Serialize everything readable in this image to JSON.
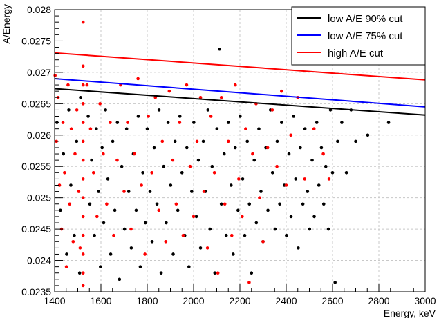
{
  "chart_data": {
    "type": "scatter",
    "title": "",
    "xlabel": "Energy, keV",
    "ylabel": "A/Energy",
    "xlim": [
      1400,
      3000
    ],
    "ylim": [
      0.0235,
      0.028
    ],
    "x_ticks": [
      1400,
      1600,
      1800,
      2000,
      2200,
      2400,
      2600,
      2800,
      3000
    ],
    "x_tick_labels": [
      "1400",
      "1600",
      "1800",
      "2000",
      "2200",
      "2400",
      "2600",
      "2800",
      "3000"
    ],
    "y_ticks": [
      0.0235,
      0.024,
      0.0245,
      0.025,
      0.0255,
      0.026,
      0.0265,
      0.027,
      0.0275,
      0.028
    ],
    "y_tick_labels": [
      "0.0235",
      "0.024",
      "0.0245",
      "0.025",
      "0.0255",
      "0.026",
      "0.0265",
      "0.027",
      "0.0275",
      "0.028"
    ],
    "grid": true,
    "legend_position": "top-right",
    "lines": [
      {
        "name": "low A/E 90% cut",
        "color": "#000000",
        "x": [
          1400,
          3000
        ],
        "y": [
          0.02674,
          0.02632
        ]
      },
      {
        "name": "low A/E 75% cut",
        "color": "#0000ff",
        "x": [
          1400,
          3000
        ],
        "y": [
          0.0269,
          0.02645
        ]
      },
      {
        "name": "high A/E cut",
        "color": "#ff0000",
        "x": [
          1400,
          3000
        ],
        "y": [
          0.02731,
          0.02688
        ]
      }
    ],
    "scatter_series": [
      {
        "color": "#000000",
        "points": [
          [
            1410,
            0.0262
          ],
          [
            1425,
            0.0248
          ],
          [
            1438,
            0.0257
          ],
          [
            1452,
            0.0241
          ],
          [
            1461,
            0.0264
          ],
          [
            1470,
            0.0252
          ],
          [
            1485,
            0.0244
          ],
          [
            1495,
            0.0259
          ],
          [
            1508,
            0.0238
          ],
          [
            1512,
            0.0266
          ],
          [
            1545,
            0.0263
          ],
          [
            1552,
            0.0249
          ],
          [
            1560,
            0.0256
          ],
          [
            1572,
            0.0244
          ],
          [
            1580,
            0.0261
          ],
          [
            1590,
            0.0251
          ],
          [
            1598,
            0.0239
          ],
          [
            1605,
            0.0258
          ],
          [
            1612,
            0.0246
          ],
          [
            1620,
            0.0264
          ],
          [
            1630,
            0.0253
          ],
          [
            1642,
            0.0241
          ],
          [
            1651,
            0.0259
          ],
          [
            1660,
            0.0248
          ],
          [
            1671,
            0.0262
          ],
          [
            1680,
            0.0237
          ],
          [
            1690,
            0.0255
          ],
          [
            1702,
            0.0245
          ],
          [
            1711,
            0.0261
          ],
          [
            1720,
            0.0251
          ],
          [
            1731,
            0.0242
          ],
          [
            1740,
            0.0257
          ],
          [
            1752,
            0.0248
          ],
          [
            1761,
            0.0263
          ],
          [
            1770,
            0.0239
          ],
          [
            1781,
            0.0254
          ],
          [
            1792,
            0.0246
          ],
          [
            1800,
            0.0261
          ],
          [
            1812,
            0.0251
          ],
          [
            1821,
            0.0243
          ],
          [
            1830,
            0.0258
          ],
          [
            1842,
            0.0249
          ],
          [
            1851,
            0.0264
          ],
          [
            1860,
            0.0238
          ],
          [
            1871,
            0.0255
          ],
          [
            1882,
            0.0246
          ],
          [
            1890,
            0.0262
          ],
          [
            1901,
            0.0252
          ],
          [
            1912,
            0.0241
          ],
          [
            1920,
            0.0259
          ],
          [
            1932,
            0.0248
          ],
          [
            1941,
            0.0263
          ],
          [
            1950,
            0.0254
          ],
          [
            1962,
            0.0244
          ],
          [
            1971,
            0.0258
          ],
          [
            1980,
            0.0239
          ],
          [
            1992,
            0.0251
          ],
          [
            2001,
            0.0262
          ],
          [
            2012,
            0.0247
          ],
          [
            2021,
            0.0256
          ],
          [
            2030,
            0.0242
          ],
          [
            2042,
            0.0259
          ],
          [
            2051,
            0.0251
          ],
          [
            2062,
            0.0264
          ],
          [
            2071,
            0.0245
          ],
          [
            2080,
            0.0255
          ],
          [
            2092,
            0.0238
          ],
          [
            2101,
            0.0261
          ],
          [
            2112,
            0.02737
          ],
          [
            2120,
            0.0249
          ],
          [
            2132,
            0.0257
          ],
          [
            2141,
            0.0244
          ],
          [
            2150,
            0.0262
          ],
          [
            2162,
            0.0252
          ],
          [
            2171,
            0.0241
          ],
          [
            2180,
            0.0258
          ],
          [
            2192,
            0.0248
          ],
          [
            2201,
            0.0263
          ],
          [
            2212,
            0.0253
          ],
          [
            2221,
            0.0244
          ],
          [
            2232,
            0.0259
          ],
          [
            2241,
            0.0249
          ],
          [
            2250,
            0.0238
          ],
          [
            2262,
            0.0256
          ],
          [
            2271,
            0.0246
          ],
          [
            2282,
            0.0261
          ],
          [
            2291,
            0.0251
          ],
          [
            2300,
            0.0243
          ],
          [
            2312,
            0.0258
          ],
          [
            2321,
            0.0248
          ],
          [
            2332,
            0.0264
          ],
          [
            2341,
            0.0254
          ],
          [
            2352,
            0.0245
          ],
          [
            2361,
            0.0259
          ],
          [
            2372,
            0.0249
          ],
          [
            2380,
            0.0262
          ],
          [
            2392,
            0.0252
          ],
          [
            2401,
            0.0244
          ],
          [
            2412,
            0.0257
          ],
          [
            2421,
            0.0247
          ],
          [
            2432,
            0.0263
          ],
          [
            2441,
            0.0253
          ],
          [
            2452,
            0.0242
          ],
          [
            2461,
            0.0258
          ],
          [
            2472,
            0.0249
          ],
          [
            2481,
            0.0261
          ],
          [
            2492,
            0.0251
          ],
          [
            2501,
            0.0245
          ],
          [
            2512,
            0.0256
          ],
          [
            2521,
            0.0247
          ],
          [
            2532,
            0.0262
          ],
          [
            2541,
            0.0252
          ],
          [
            2552,
            0.0258
          ],
          [
            2562,
            0.0249
          ],
          [
            2571,
            0.0255
          ],
          [
            2582,
            0.0245
          ],
          [
            2591,
            0.0264
          ],
          [
            2600,
            0.0254
          ],
          [
            2611,
            0.02365
          ],
          [
            2622,
            0.0259
          ],
          [
            2640,
            0.0262
          ],
          [
            2660,
            0.0254
          ],
          [
            2680,
            0.0264
          ],
          [
            2700,
            0.0259
          ],
          [
            2752,
            0.026
          ],
          [
            2842,
            0.0262
          ]
        ]
      },
      {
        "color": "#ff0000",
        "points": [
          [
            1402,
            0.02695
          ],
          [
            1408,
            0.0259
          ],
          [
            1415,
            0.0266
          ],
          [
            1421,
            0.0252
          ],
          [
            1430,
            0.0245
          ],
          [
            1436,
            0.0262
          ],
          [
            1443,
            0.0254
          ],
          [
            1451,
            0.0239
          ],
          [
            1458,
            0.0268
          ],
          [
            1465,
            0.0249
          ],
          [
            1472,
            0.0261
          ],
          [
            1480,
            0.0243
          ],
          [
            1488,
            0.0257
          ],
          [
            1496,
            0.0264
          ],
          [
            1504,
            0.0251
          ],
          [
            1510,
            0.0242
          ],
          [
            1523,
            0.0278
          ],
          [
            1523,
            0.0271
          ],
          [
            1523,
            0.0268
          ],
          [
            1523,
            0.0265
          ],
          [
            1523,
            0.0262
          ],
          [
            1523,
            0.0259
          ],
          [
            1523,
            0.0256
          ],
          [
            1523,
            0.0253
          ],
          [
            1523,
            0.025
          ],
          [
            1523,
            0.0247
          ],
          [
            1523,
            0.0244
          ],
          [
            1523,
            0.0241
          ],
          [
            1523,
            0.0238
          ],
          [
            1523,
            0.0236
          ],
          [
            1540,
            0.0268
          ],
          [
            1555,
            0.0261
          ],
          [
            1568,
            0.0254
          ],
          [
            1583,
            0.0247
          ],
          [
            1596,
            0.0265
          ],
          [
            1610,
            0.0257
          ],
          [
            1625,
            0.0249
          ],
          [
            1640,
            0.0262
          ],
          [
            1655,
            0.0244
          ],
          [
            1670,
            0.0256
          ],
          [
            1685,
            0.0268
          ],
          [
            1700,
            0.0251
          ],
          [
            1715,
            0.0262
          ],
          [
            1730,
            0.0245
          ],
          [
            1745,
            0.0257
          ],
          [
            1760,
            0.0269
          ],
          [
            1775,
            0.0252
          ],
          [
            1790,
            0.0241
          ],
          [
            1805,
            0.0263
          ],
          [
            1820,
            0.0254
          ],
          [
            1835,
            0.0266
          ],
          [
            1850,
            0.0248
          ],
          [
            1865,
            0.0259
          ],
          [
            1880,
            0.0243
          ],
          [
            1895,
            0.0267
          ],
          [
            1910,
            0.0256
          ],
          [
            1925,
            0.0249
          ],
          [
            1940,
            0.0262
          ],
          [
            1955,
            0.0244
          ],
          [
            1970,
            0.0268
          ],
          [
            1985,
            0.0255
          ],
          [
            2000,
            0.0247
          ],
          [
            2015,
            0.0259
          ],
          [
            2030,
            0.0266
          ],
          [
            2045,
            0.0251
          ],
          [
            2060,
            0.0242
          ],
          [
            2075,
            0.0263
          ],
          [
            2090,
            0.0254
          ],
          [
            2105,
            0.0238
          ],
          [
            2120,
            0.0266
          ],
          [
            2135,
            0.0249
          ],
          [
            2150,
            0.0259
          ],
          [
            2165,
            0.0244
          ],
          [
            2180,
            0.0268
          ],
          [
            2195,
            0.0253
          ],
          [
            2210,
            0.0247
          ],
          [
            2225,
            0.0261
          ],
          [
            2240,
            0.02365
          ],
          [
            2255,
            0.0257
          ],
          [
            2270,
            0.0265
          ],
          [
            2285,
            0.025
          ],
          [
            2300,
            0.0243
          ],
          [
            2320,
            0.0258
          ],
          [
            2340,
            0.0264
          ],
          [
            2360,
            0.0255
          ],
          [
            2380,
            0.0267
          ],
          [
            2400,
            0.0252
          ],
          [
            2420,
            0.026
          ],
          [
            2450,
            0.0266
          ],
          [
            2480,
            0.0253
          ],
          [
            2520,
            0.0261
          ],
          [
            2560,
            0.0257
          ],
          [
            2585,
            0.0253
          ]
        ]
      }
    ]
  }
}
